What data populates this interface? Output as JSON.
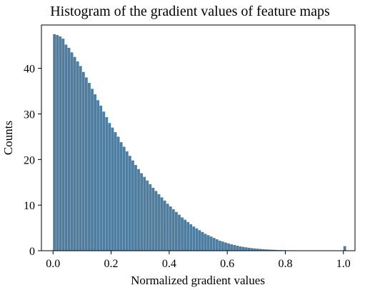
{
  "chart_data": {
    "type": "bar",
    "title": "Histogram of the gradient values of feature maps",
    "xlabel": "Normalized gradient values",
    "ylabel": "Counts",
    "xlim": [
      -0.04,
      1.04
    ],
    "ylim": [
      0,
      49.5
    ],
    "xticks": [
      "0.0",
      "0.2",
      "0.4",
      "0.6",
      "0.8",
      "1.0"
    ],
    "yticks": [
      "0",
      "10",
      "20",
      "30",
      "40"
    ],
    "grid": false,
    "bin_width": 0.01,
    "bin_start": 0.0,
    "bar_color": "#4f7d9f",
    "values": [
      47.5,
      47.3,
      47.0,
      46.5,
      45.2,
      44.5,
      43.5,
      42.5,
      41.5,
      40.5,
      39.2,
      38.0,
      36.8,
      35.5,
      34.3,
      33.0,
      31.8,
      30.5,
      29.3,
      28.0,
      27.0,
      26.0,
      25.0,
      23.8,
      22.8,
      21.8,
      20.8,
      19.8,
      18.8,
      17.9,
      17.0,
      16.2,
      15.4,
      14.6,
      13.8,
      13.1,
      12.4,
      11.7,
      11.0,
      10.3,
      9.7,
      9.1,
      8.5,
      7.9,
      7.3,
      6.8,
      6.3,
      5.8,
      5.3,
      4.9,
      4.5,
      4.1,
      3.7,
      3.4,
      3.1,
      2.8,
      2.5,
      2.2,
      2.0,
      1.8,
      1.6,
      1.4,
      1.25,
      1.1,
      0.95,
      0.85,
      0.75,
      0.65,
      0.57,
      0.5,
      0.44,
      0.38,
      0.33,
      0.29,
      0.25,
      0.22,
      0.19,
      0.16,
      0.14,
      0.12,
      0.1,
      0.09,
      0.08,
      0.07,
      0.06,
      0.05,
      0.04,
      0.035,
      0.03,
      0.025,
      0.02,
      0.015,
      0.012,
      0.01,
      0.008,
      0.006,
      0.005,
      0.004,
      0.003,
      0.003,
      1.0
    ]
  }
}
